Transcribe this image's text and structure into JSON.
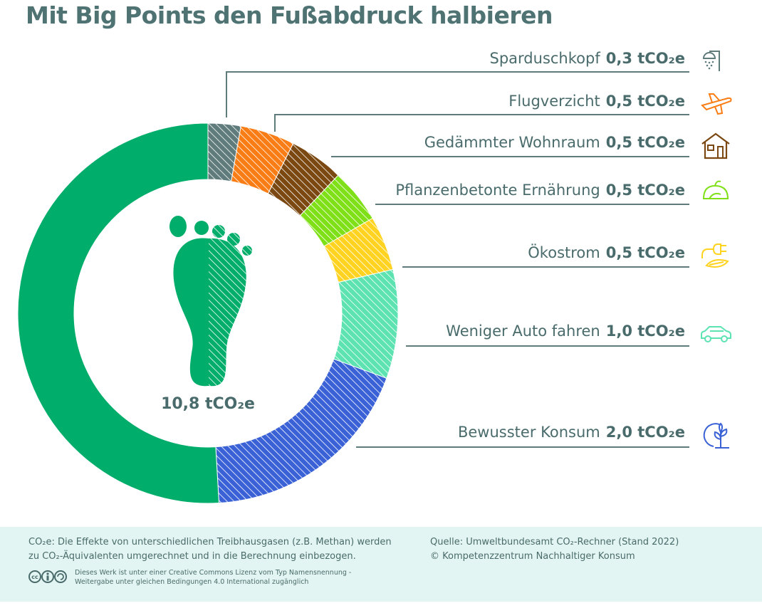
{
  "title": "Mit Big Points den Fußabdruck halbieren",
  "chart_data": {
    "type": "donut",
    "total_label": "10,8 tCO₂e",
    "total": 10.8,
    "unit": "tCO₂e",
    "segments": [
      {
        "label": "Sparduschkopf",
        "value": 0.3,
        "value_label": "0,3 tCO₂e",
        "color": "#5f7b7b",
        "icon": "shower-icon",
        "hatched": true
      },
      {
        "label": "Flugverzicht",
        "value": 0.5,
        "value_label": "0,5 tCO₂e",
        "color": "#f97d14",
        "icon": "airplane-icon",
        "hatched": true
      },
      {
        "label": "Gedämmter Wohnraum",
        "value": 0.5,
        "value_label": "0,5 tCO₂e",
        "color": "#7a4810",
        "icon": "house-icon",
        "hatched": true
      },
      {
        "label": "Pflanzenbetonte Ernährung",
        "value": 0.5,
        "value_label": "0,5 tCO₂e",
        "color": "#80e018",
        "icon": "vegetables-icon",
        "hatched": true
      },
      {
        "label": "Ökostrom",
        "value": 0.5,
        "value_label": "0,5 tCO₂e",
        "color": "#ffd320",
        "icon": "green-power-plug-icon",
        "hatched": true
      },
      {
        "label": "Weniger Auto fahren",
        "value": 1.0,
        "value_label": "1,0 tCO₂e",
        "color": "#5de3b2",
        "icon": "car-icon",
        "hatched": true
      },
      {
        "label": "Bewusster Konsum",
        "value": 2.0,
        "value_label": "2,0 tCO₂e",
        "color": "#3a62d6",
        "icon": "globe-plant-icon",
        "hatched": true
      },
      {
        "label": "",
        "value": 5.5,
        "color": "#00ad6a",
        "hatched": false
      }
    ]
  },
  "footer": {
    "note1": "CO₂e: Die Effekte von unterschiedlichen Treibhausgasen (z.B. Methan) werden",
    "note2": "zu CO₂-Äquivalenten umgerechnet und in die Berechnung einbezogen.",
    "source1": "Quelle: Umweltbundesamt CO₂-Rechner (Stand 2022)",
    "source2": "© Kompetenzzentrum Nachhaltiger Konsum",
    "license1": "Dieses Werk ist unter einer Creative Commons Lizenz vom Typ Namensnennung -",
    "license2": "Weitergabe unter gleichen Bedingungen 4.0 International zugänglich"
  }
}
